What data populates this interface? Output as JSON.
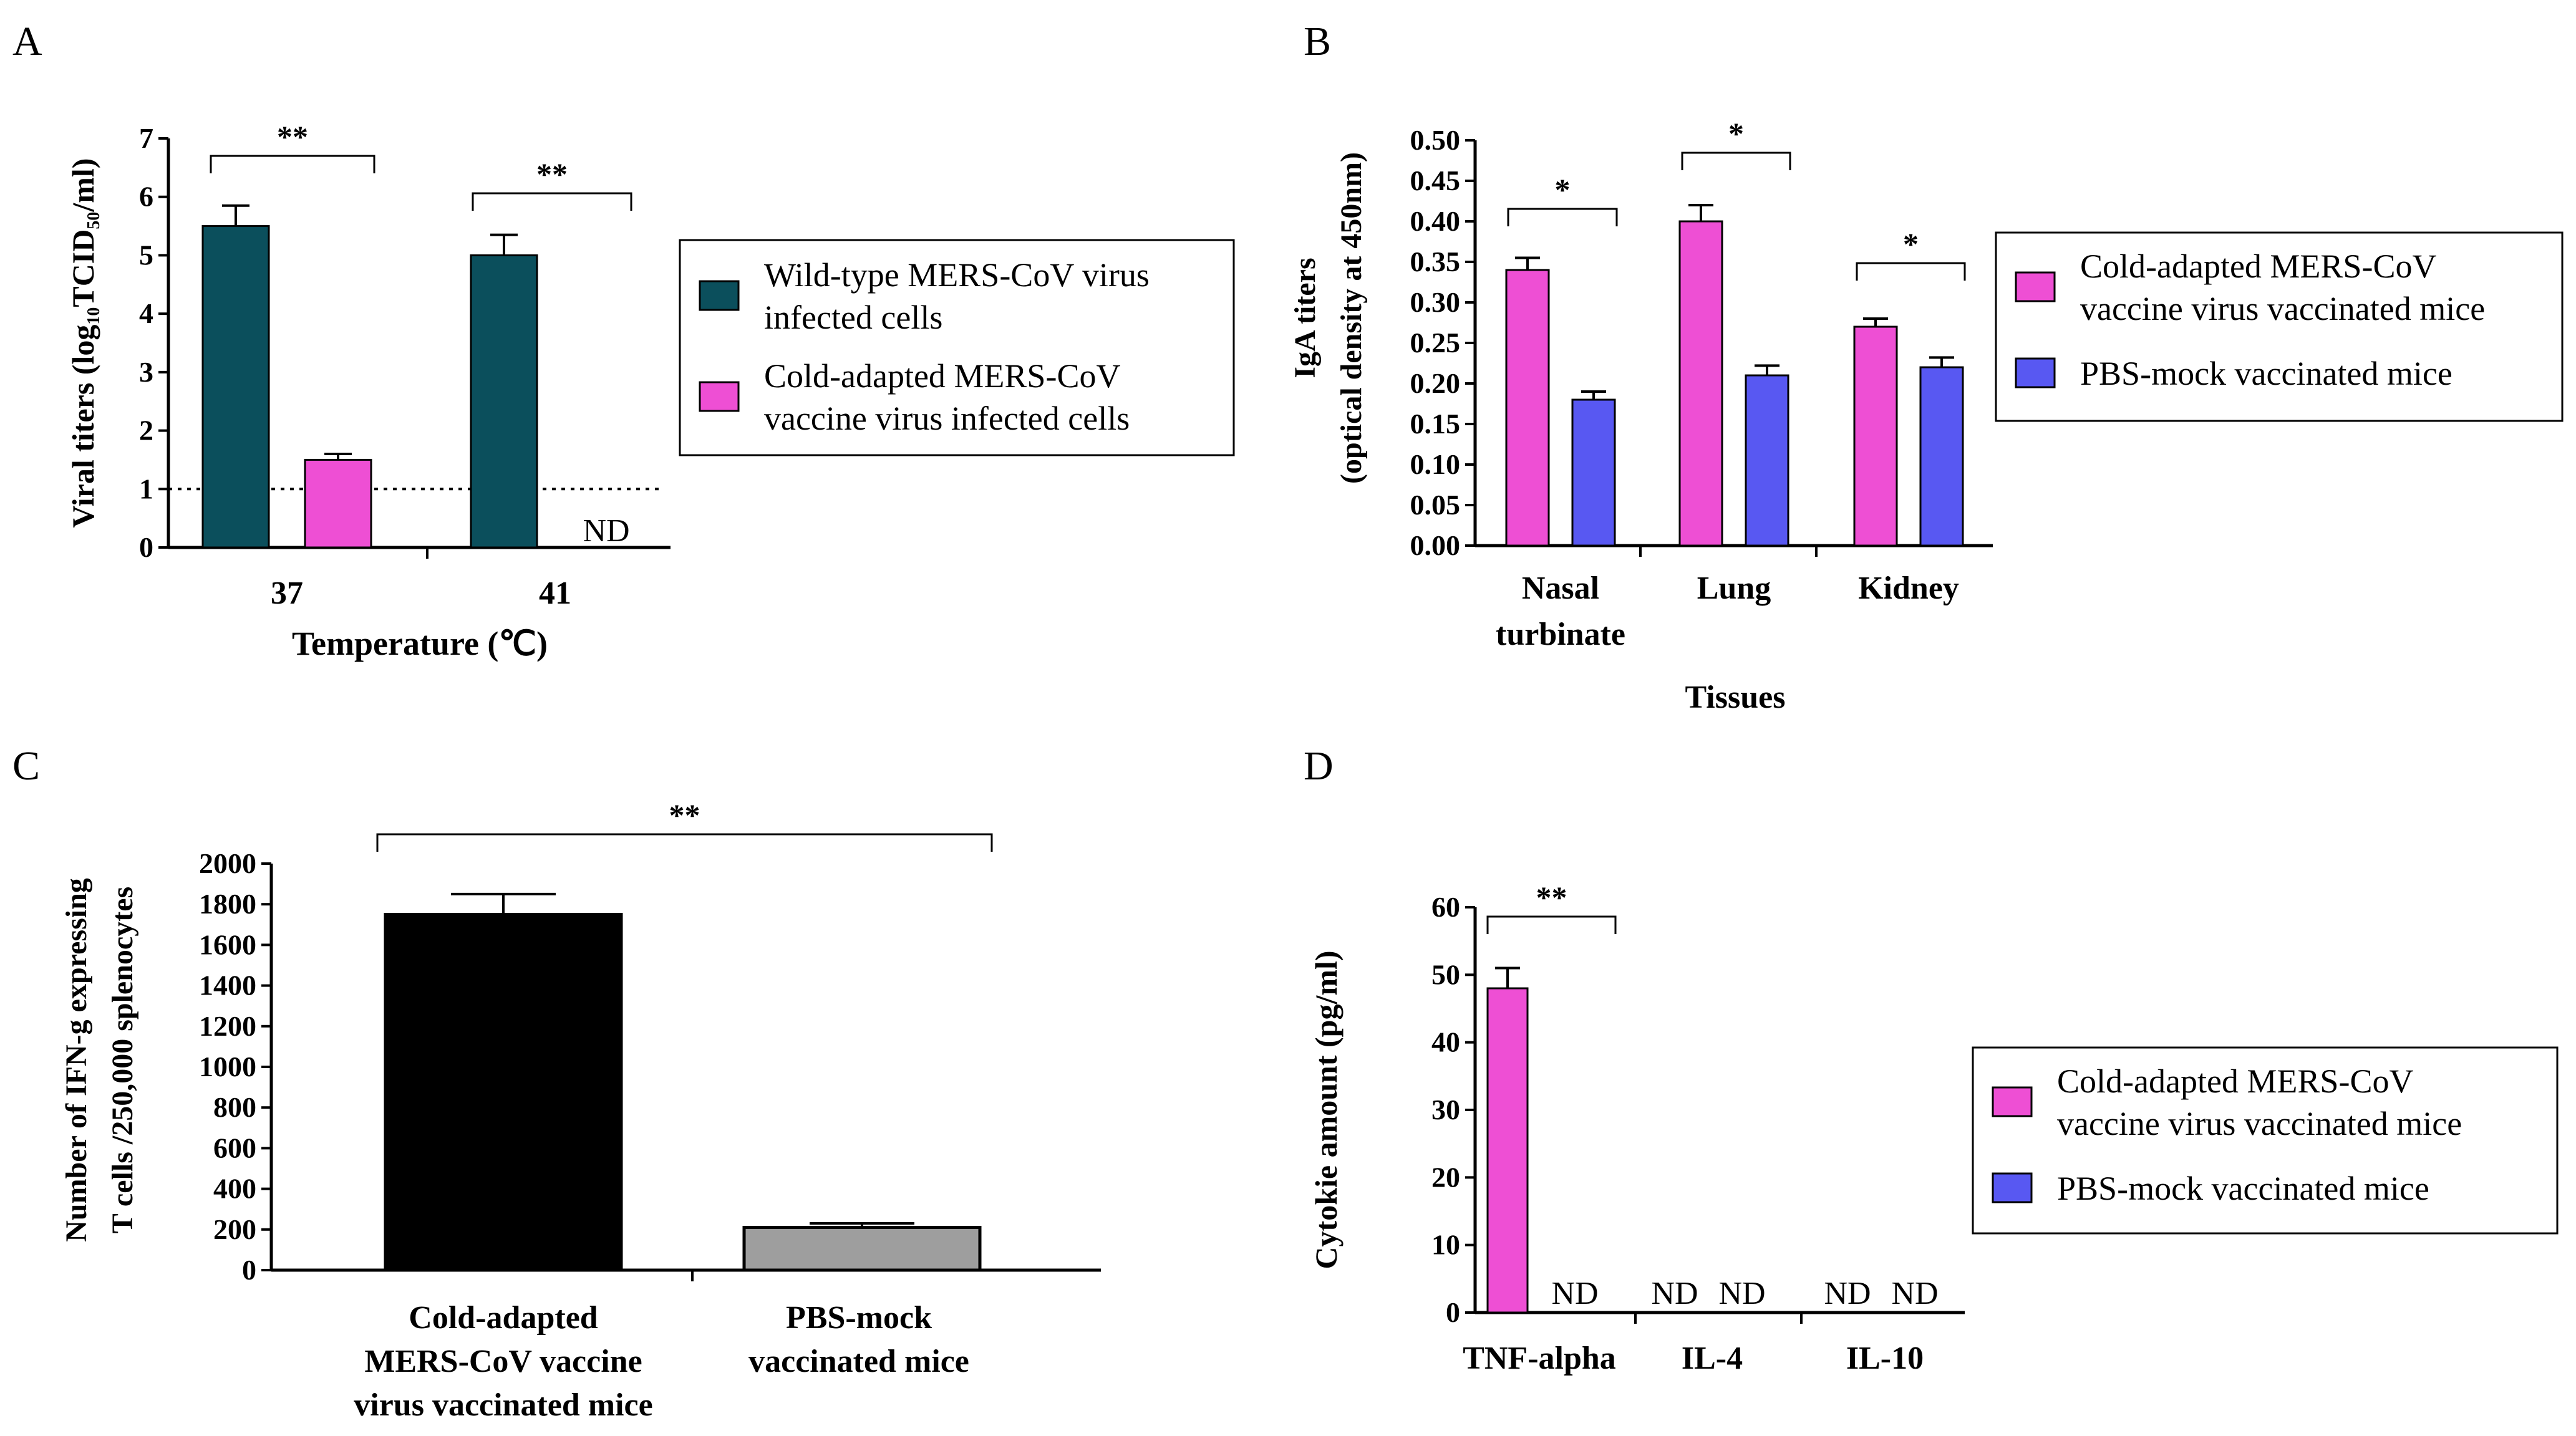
{
  "figure": {
    "panels": [
      {
        "letter": "A"
      },
      {
        "letter": "B"
      },
      {
        "letter": "C"
      },
      {
        "letter": "D"
      }
    ]
  },
  "colors": {
    "teal": "#0b4f5c",
    "magenta": "#ee4fd4",
    "blue": "#5858f2",
    "black": "#000000",
    "gray": "#9e9e9e"
  },
  "chart_data": [
    {
      "panel": "A",
      "type": "bar",
      "xlabel": "Temperature (℃)",
      "ylabel_html": "Viral titers (log<tspan dy=\"9\" font-size=\"28\">10</tspan><tspan dy=\"-9\">TCID</tspan><tspan dy=\"9\" font-size=\"28\">50</tspan><tspan dy=\"-9\">/ml)</tspan>",
      "categories": [
        "37",
        "41"
      ],
      "yticks": [
        "0",
        "1",
        "2",
        "3",
        "4",
        "5",
        "6",
        "7"
      ],
      "ylim": [
        0,
        7
      ],
      "detection_limit": 1,
      "series": [
        {
          "name": "Wild-type MERS-CoV virus infected cells",
          "legend_lines": [
            "Wild-type MERS-CoV virus",
            "infected cells"
          ],
          "color": "#0b4f5c",
          "values": [
            5.5,
            5.0
          ],
          "errors": [
            0.35,
            0.35
          ]
        },
        {
          "name": "Cold-adapted MERS-CoV vaccine virus infected cells",
          "legend_lines": [
            "Cold-adapted MERS-CoV",
            "vaccine virus infected cells"
          ],
          "color": "#ee4fd4",
          "values": [
            1.5,
            null
          ],
          "errors": [
            0.1,
            null
          ]
        }
      ],
      "not_detected_label": "ND",
      "significance": [
        "**",
        "**"
      ]
    },
    {
      "panel": "B",
      "type": "bar",
      "xlabel": "Tissues",
      "ylabel_lines": [
        "IgA titers",
        "(optical density at 450nm)"
      ],
      "categories": [
        "Nasal turbinate",
        "Lung",
        "Kidney"
      ],
      "category_lines": [
        [
          "Nasal",
          "turbinate"
        ],
        [
          "Lung"
        ],
        [
          "Kidney"
        ]
      ],
      "yticks": [
        "0.00",
        "0.05",
        "0.10",
        "0.15",
        "0.20",
        "0.25",
        "0.30",
        "0.35",
        "0.40",
        "0.45",
        "0.50"
      ],
      "ylim": [
        0,
        0.5
      ],
      "series": [
        {
          "name": "Cold-adapted MERS-CoV vaccine virus vaccinated mice",
          "legend_lines": [
            "Cold-adapted MERS-CoV",
            "vaccine virus vaccinated mice"
          ],
          "color": "#ee4fd4",
          "values": [
            0.34,
            0.4,
            0.27
          ],
          "errors": [
            0.015,
            0.02,
            0.01
          ]
        },
        {
          "name": "PBS-mock vaccinated mice",
          "legend_lines": [
            "PBS-mock vaccinated mice"
          ],
          "color": "#5858f2",
          "values": [
            0.18,
            0.21,
            0.22
          ],
          "errors": [
            0.01,
            0.012,
            0.012
          ]
        }
      ],
      "significance": [
        "*",
        "*",
        "*"
      ]
    },
    {
      "panel": "C",
      "type": "bar",
      "ylabel_lines": [
        "Number of IFN-g expressing",
        "T cells /250,000 splenocytes"
      ],
      "categories": [
        "Cold-adapted MERS-CoV vaccine virus vaccinated mice",
        "PBS-mock vaccinated mice"
      ],
      "category_lines": [
        [
          "Cold-adapted",
          "MERS-CoV vaccine",
          "virus vaccinated mice"
        ],
        [
          "PBS-mock",
          "vaccinated mice"
        ]
      ],
      "yticks": [
        "0",
        "200",
        "400",
        "600",
        "800",
        "1000",
        "1200",
        "1400",
        "1600",
        "1800",
        "2000"
      ],
      "ylim": [
        0,
        2000
      ],
      "values": [
        1750,
        210
      ],
      "errors": [
        100,
        20
      ],
      "colors": [
        "#000000",
        "#9e9e9e"
      ],
      "significance": [
        "**"
      ]
    },
    {
      "panel": "D",
      "type": "bar",
      "ylabel": "Cytokie amount (pg/ml)",
      "categories": [
        "TNF-alpha",
        "IL-4",
        "IL-10"
      ],
      "yticks": [
        "0",
        "10",
        "20",
        "30",
        "40",
        "50",
        "60"
      ],
      "ylim": [
        0,
        60
      ],
      "series": [
        {
          "name": "Cold-adapted MERS-CoV vaccine virus vaccinated mice",
          "legend_lines": [
            "Cold-adapted MERS-CoV",
            "vaccine virus vaccinated mice"
          ],
          "color": "#ee4fd4",
          "values": [
            48,
            null,
            null
          ],
          "errors": [
            3,
            null,
            null
          ]
        },
        {
          "name": "PBS-mock vaccinated mice",
          "legend_lines": [
            "PBS-mock vaccinated mice"
          ],
          "color": "#5858f2",
          "values": [
            null,
            null,
            null
          ],
          "errors": [
            null,
            null,
            null
          ]
        }
      ],
      "not_detected_label": "ND",
      "significance": [
        "**"
      ]
    }
  ]
}
